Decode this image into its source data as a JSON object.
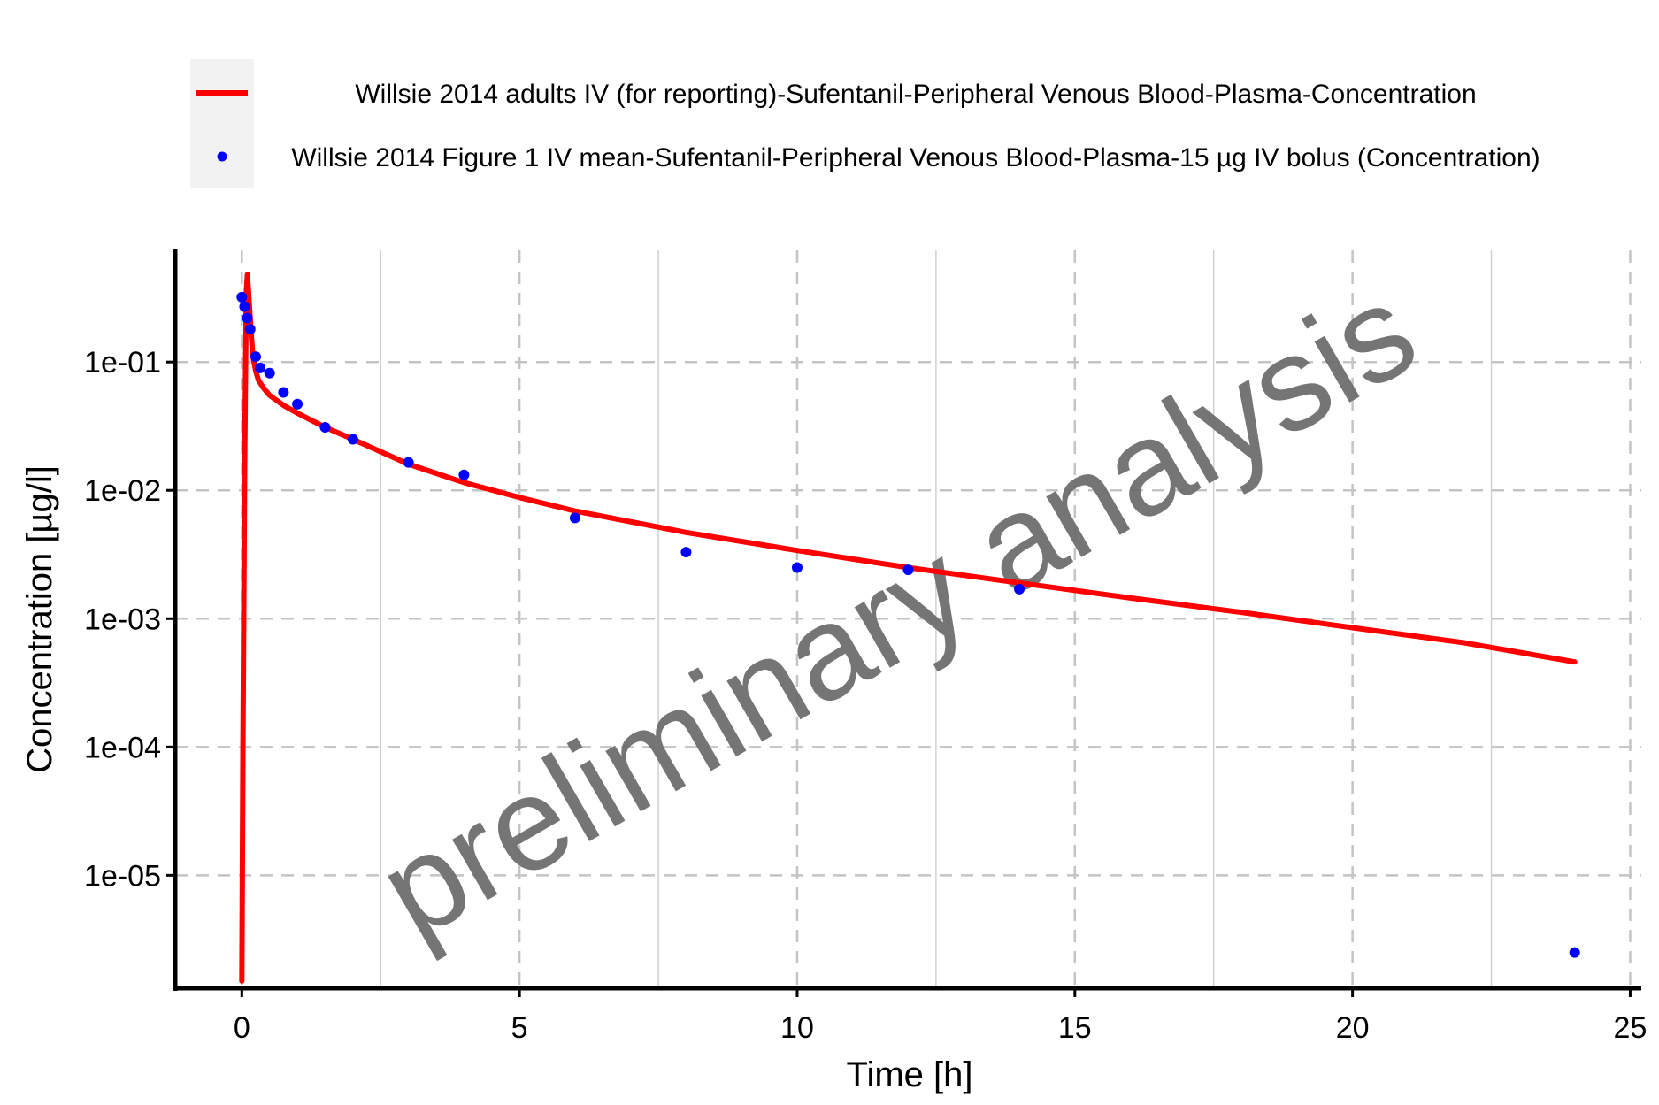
{
  "chart_data": {
    "type": "line",
    "xlabel": "Time [h]",
    "ylabel": "Concentration [µg/l]",
    "xlim": [
      -1.2,
      25.2
    ],
    "ylim_log10": [
      -5.88,
      -0.13
    ],
    "y_scale": "log",
    "grid": true,
    "legend_position": "top",
    "x_ticks": [
      0,
      5,
      10,
      15,
      20,
      25
    ],
    "x_tick_labels": [
      "0",
      "5",
      "10",
      "15",
      "20",
      "25"
    ],
    "y_ticks": [
      0.1,
      0.01,
      0.001,
      0.0001,
      1e-05
    ],
    "y_tick_labels": [
      "1e-01",
      "1e-02",
      "1e-03",
      "1e-04",
      "1e-05"
    ],
    "watermark": "preliminary analysis",
    "series": [
      {
        "name": "Willsie 2014 adults IV (for reporting)-Sufentanil-Peripheral Venous Blood-Plasma-Concentration",
        "kind": "line",
        "color": "#ff0000",
        "x": [
          0.0,
          0.02,
          0.05,
          0.08,
          0.1,
          0.13,
          0.17,
          0.2,
          0.25,
          0.3,
          0.4,
          0.5,
          0.75,
          1.0,
          1.5,
          2.0,
          3.0,
          4.0,
          5.0,
          6.0,
          8.0,
          10.0,
          12.0,
          14.0,
          16.0,
          18.0,
          20.0,
          22.0,
          24.0
        ],
        "y": [
          1.5e-06,
          0.0001,
          0.015,
          0.35,
          0.48,
          0.3,
          0.16,
          0.11,
          0.085,
          0.072,
          0.062,
          0.055,
          0.046,
          0.04,
          0.031,
          0.025,
          0.016,
          0.0115,
          0.0088,
          0.0069,
          0.0047,
          0.0034,
          0.0025,
          0.0019,
          0.00145,
          0.00112,
          0.00085,
          0.00065,
          0.00046
        ]
      },
      {
        "name": "Willsie 2014 Figure 1 IV mean-Sufentanil-Peripheral Venous Blood-Plasma-15 µg IV bolus (Concentration)",
        "kind": "scatter",
        "color": "#0000ff",
        "x": [
          0.0,
          0.05,
          0.1,
          0.15,
          0.25,
          0.33,
          0.5,
          0.75,
          1.0,
          1.5,
          2.0,
          3.0,
          4.0,
          6.0,
          8.0,
          10.0,
          12.0,
          14.0,
          24.0
        ],
        "y": [
          0.32,
          0.27,
          0.22,
          0.18,
          0.11,
          0.09,
          0.082,
          0.058,
          0.047,
          0.031,
          0.025,
          0.0165,
          0.0132,
          0.0061,
          0.0033,
          0.0025,
          0.0024,
          0.0017,
          2.5e-06
        ]
      }
    ]
  }
}
